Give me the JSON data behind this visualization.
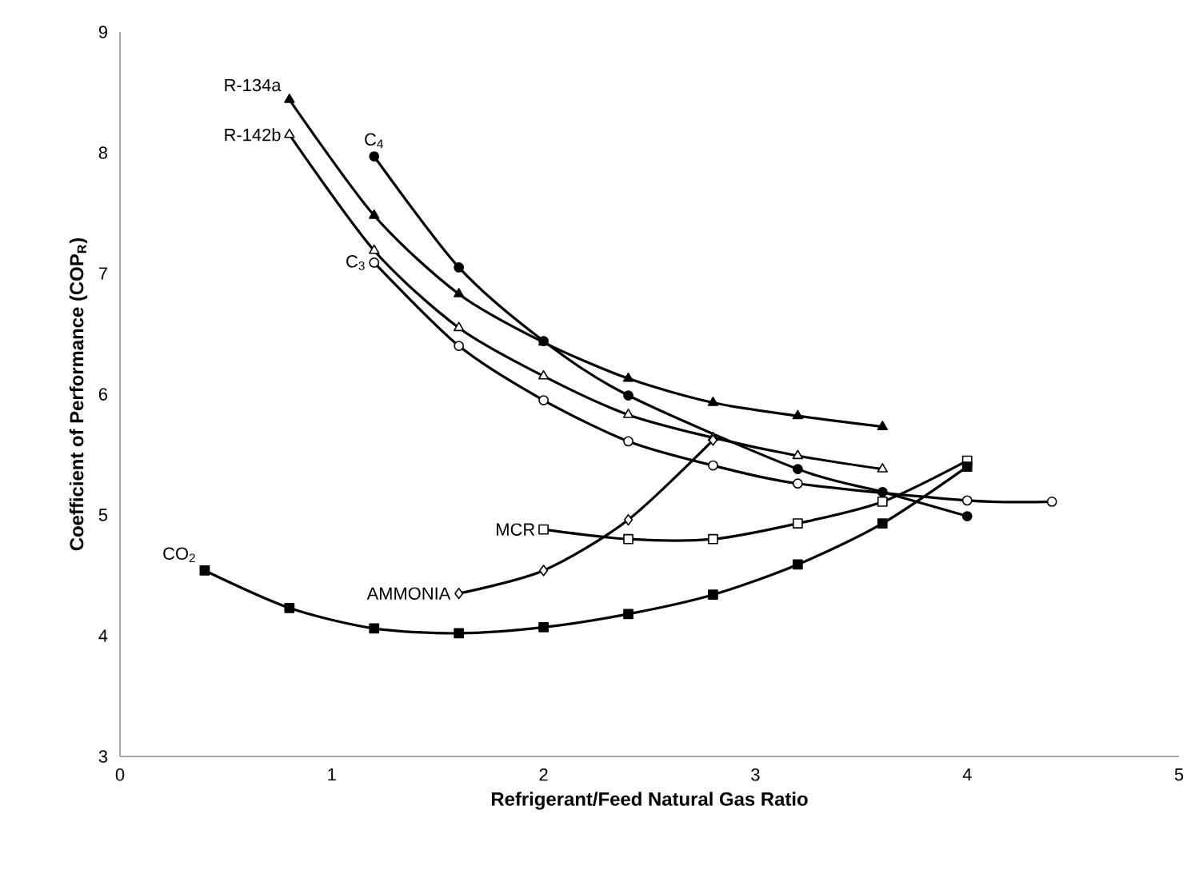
{
  "chart_data": {
    "type": "line",
    "xlabel": "Refrigerant/Feed Natural Gas Ratio",
    "ylabel": "Coefficient of Performance (COP$_{R}$)",
    "xlim": [
      0,
      5
    ],
    "ylim": [
      3,
      9
    ],
    "xticks": [
      0,
      1,
      2,
      3,
      4,
      5
    ],
    "yticks": [
      3,
      4,
      5,
      6,
      7,
      8,
      9
    ],
    "line_style": "solid",
    "series": [
      {
        "name": "R-134a",
        "color": "#000000",
        "marker": "triangle",
        "x": [
          0.8,
          1.2,
          1.6,
          2.0,
          2.4,
          2.8,
          3.2,
          3.6
        ],
        "values": [
          8.44,
          7.48,
          6.83,
          6.43,
          6.13,
          5.93,
          5.82,
          5.73
        ]
      },
      {
        "name": "R-142b",
        "color": "#000000",
        "marker": "triangle",
        "x": [
          0.8,
          1.2,
          1.6,
          2.0,
          2.4,
          2.8,
          3.2,
          3.6
        ],
        "values": [
          8.15,
          7.19,
          6.55,
          6.15,
          5.83,
          5.64,
          5.49,
          5.38
        ]
      },
      {
        "name": "C$_{4}$",
        "color": "#000000",
        "marker": "circle",
        "x": [
          1.2,
          1.6,
          2.0,
          2.4,
          3.2,
          3.6,
          4.0
        ],
        "values": [
          7.97,
          7.05,
          6.44,
          5.99,
          5.38,
          5.19,
          4.99
        ]
      },
      {
        "name": "C$_{3}$",
        "color": "#000000",
        "marker": "circle",
        "x": [
          1.2,
          1.6,
          2.0,
          2.4,
          2.8,
          3.2,
          4.0,
          4.4
        ],
        "values": [
          7.09,
          6.4,
          5.95,
          5.61,
          5.41,
          5.26,
          5.12,
          5.11
        ]
      },
      {
        "name": "MCR",
        "color": "#000000",
        "marker": "square",
        "x": [
          2.0,
          2.4,
          2.8,
          3.2,
          3.6,
          4.0
        ],
        "values": [
          4.88,
          4.8,
          4.8,
          4.93,
          5.11,
          5.45
        ]
      },
      {
        "name": "AMMONIA",
        "color": "#000000",
        "marker": "diamond",
        "x": [
          1.6,
          2.0,
          2.4,
          2.8
        ],
        "values": [
          4.35,
          4.54,
          4.96,
          5.62
        ]
      },
      {
        "name": "CO$_{2}$",
        "color": "#000000",
        "marker": "square",
        "x": [
          0.4,
          0.8,
          1.2,
          1.6,
          2.0,
          2.4,
          2.8,
          3.2,
          3.6,
          4.0
        ],
        "values": [
          4.54,
          4.23,
          4.06,
          4.02,
          4.07,
          4.18,
          4.34,
          4.59,
          4.93,
          5.4
        ]
      }
    ]
  }
}
